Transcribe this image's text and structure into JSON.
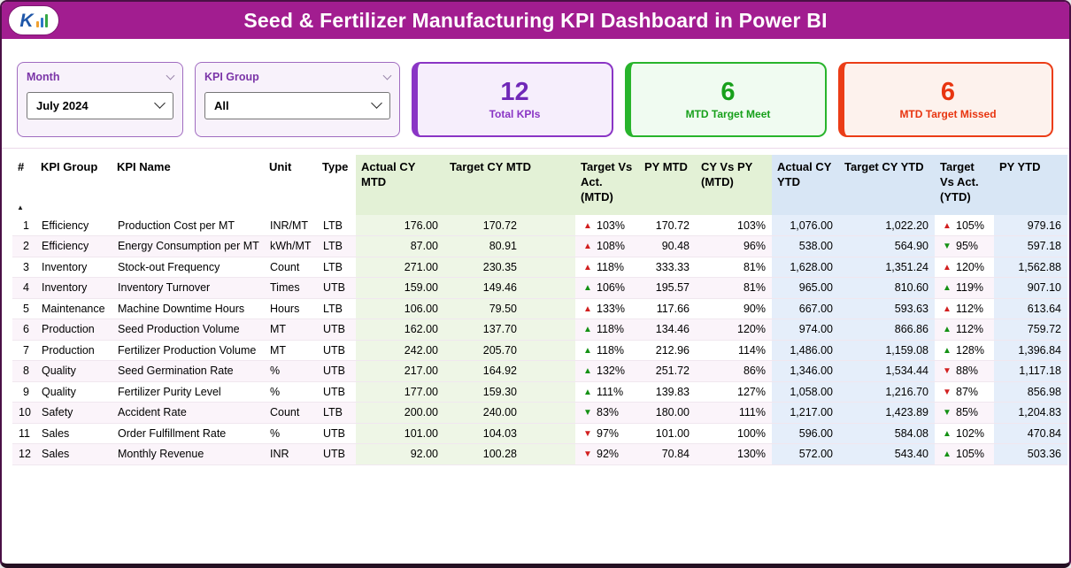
{
  "header": {
    "title": "Seed & Fertilizer Manufacturing KPI Dashboard in Power BI",
    "logo_letter": "K",
    "bar_color": "#a21d90"
  },
  "filters": {
    "month": {
      "label": "Month",
      "value": "July 2024"
    },
    "kpi_group": {
      "label": "KPI Group",
      "value": "All"
    }
  },
  "cards": [
    {
      "value": "12",
      "label": "Total KPIs",
      "color": "#8a35c5"
    },
    {
      "value": "6",
      "label": "MTD Target Meet",
      "color": "#28b42c"
    },
    {
      "value": "6",
      "label": "MTD Target Missed",
      "color": "#eb3d17"
    }
  ],
  "icons": {
    "chevron_down": "⌄",
    "sort_ascending": "▲",
    "up_arrow": "▲",
    "down_arrow": "▼"
  },
  "status_colors": {
    "bad": "#d21f1f",
    "good": "#149114"
  },
  "sort": {
    "column": "#",
    "direction": "ascending"
  },
  "table": {
    "columns": [
      {
        "key": "num",
        "label": "#",
        "header_tint": "plain",
        "shade": null,
        "align": "right",
        "arrow": false
      },
      {
        "key": "group",
        "label": "KPI Group",
        "header_tint": "plain",
        "shade": null,
        "align": "left",
        "arrow": false
      },
      {
        "key": "name",
        "label": "KPI Name",
        "header_tint": "plain",
        "shade": null,
        "align": "left",
        "arrow": false
      },
      {
        "key": "unit",
        "label": "Unit",
        "header_tint": "plain",
        "shade": null,
        "align": "left",
        "arrow": false
      },
      {
        "key": "type",
        "label": "Type",
        "header_tint": "plain",
        "shade": null,
        "align": "left",
        "arrow": false
      },
      {
        "key": "actual_mtd",
        "label": "Actual CY MTD",
        "header_tint": "green",
        "shade": "green",
        "align": "right",
        "arrow": false
      },
      {
        "key": "target_mtd",
        "label": "Target CY MTD",
        "header_tint": "green",
        "shade": "green",
        "align": "right",
        "arrow": false
      },
      {
        "key": "tva_mtd",
        "label": "Target Vs Act. (MTD)",
        "header_tint": "green",
        "shade": null,
        "align": "left",
        "arrow": true
      },
      {
        "key": "py_mtd",
        "label": "PY MTD",
        "header_tint": "green",
        "shade": null,
        "align": "right",
        "arrow": false
      },
      {
        "key": "cyvspy_mtd",
        "label": "CY Vs PY (MTD)",
        "header_tint": "green",
        "shade": null,
        "align": "right",
        "arrow": false
      },
      {
        "key": "actual_ytd",
        "label": "Actual CY YTD",
        "header_tint": "blue",
        "shade": "blue",
        "align": "right",
        "arrow": false
      },
      {
        "key": "target_ytd",
        "label": "Target CY YTD",
        "header_tint": "blue",
        "shade": "blue",
        "align": "right",
        "arrow": false
      },
      {
        "key": "tva_ytd",
        "label": "Target Vs Act. (YTD)",
        "header_tint": "blue",
        "shade": null,
        "align": "left",
        "arrow": true
      },
      {
        "key": "py_ytd",
        "label": "PY YTD",
        "header_tint": "blue",
        "shade": "blue",
        "align": "right",
        "arrow": false
      }
    ],
    "rows": [
      {
        "num": "1",
        "group": "Efficiency",
        "name": "Production Cost per MT",
        "unit": "INR/MT",
        "type": "LTB",
        "actual_mtd": "176.00",
        "target_mtd": "170.72",
        "tva_mtd": {
          "dir": "up",
          "color": "red",
          "pct": "103%"
        },
        "py_mtd": "170.72",
        "cyvspy_mtd": "103%",
        "actual_ytd": "1,076.00",
        "target_ytd": "1,022.20",
        "tva_ytd": {
          "dir": "up",
          "color": "red",
          "pct": "105%"
        },
        "py_ytd": "979.16"
      },
      {
        "num": "2",
        "group": "Efficiency",
        "name": "Energy Consumption per MT",
        "unit": "kWh/MT",
        "type": "LTB",
        "actual_mtd": "87.00",
        "target_mtd": "80.91",
        "tva_mtd": {
          "dir": "up",
          "color": "red",
          "pct": "108%"
        },
        "py_mtd": "90.48",
        "cyvspy_mtd": "96%",
        "actual_ytd": "538.00",
        "target_ytd": "564.90",
        "tva_ytd": {
          "dir": "down",
          "color": "green",
          "pct": "95%"
        },
        "py_ytd": "597.18"
      },
      {
        "num": "3",
        "group": "Inventory",
        "name": "Stock-out Frequency",
        "unit": "Count",
        "type": "LTB",
        "actual_mtd": "271.00",
        "target_mtd": "230.35",
        "tva_mtd": {
          "dir": "up",
          "color": "red",
          "pct": "118%"
        },
        "py_mtd": "333.33",
        "cyvspy_mtd": "81%",
        "actual_ytd": "1,628.00",
        "target_ytd": "1,351.24",
        "tva_ytd": {
          "dir": "up",
          "color": "red",
          "pct": "120%"
        },
        "py_ytd": "1,562.88"
      },
      {
        "num": "4",
        "group": "Inventory",
        "name": "Inventory Turnover",
        "unit": "Times",
        "type": "UTB",
        "actual_mtd": "159.00",
        "target_mtd": "149.46",
        "tva_mtd": {
          "dir": "up",
          "color": "green",
          "pct": "106%"
        },
        "py_mtd": "195.57",
        "cyvspy_mtd": "81%",
        "actual_ytd": "965.00",
        "target_ytd": "810.60",
        "tva_ytd": {
          "dir": "up",
          "color": "green",
          "pct": "119%"
        },
        "py_ytd": "907.10"
      },
      {
        "num": "5",
        "group": "Maintenance",
        "name": "Machine Downtime Hours",
        "unit": "Hours",
        "type": "LTB",
        "actual_mtd": "106.00",
        "target_mtd": "79.50",
        "tva_mtd": {
          "dir": "up",
          "color": "red",
          "pct": "133%"
        },
        "py_mtd": "117.66",
        "cyvspy_mtd": "90%",
        "actual_ytd": "667.00",
        "target_ytd": "593.63",
        "tva_ytd": {
          "dir": "up",
          "color": "red",
          "pct": "112%"
        },
        "py_ytd": "613.64"
      },
      {
        "num": "6",
        "group": "Production",
        "name": "Seed Production Volume",
        "unit": "MT",
        "type": "UTB",
        "actual_mtd": "162.00",
        "target_mtd": "137.70",
        "tva_mtd": {
          "dir": "up",
          "color": "green",
          "pct": "118%"
        },
        "py_mtd": "134.46",
        "cyvspy_mtd": "120%",
        "actual_ytd": "974.00",
        "target_ytd": "866.86",
        "tva_ytd": {
          "dir": "up",
          "color": "green",
          "pct": "112%"
        },
        "py_ytd": "759.72"
      },
      {
        "num": "7",
        "group": "Production",
        "name": "Fertilizer Production Volume",
        "unit": "MT",
        "type": "UTB",
        "actual_mtd": "242.00",
        "target_mtd": "205.70",
        "tva_mtd": {
          "dir": "up",
          "color": "green",
          "pct": "118%"
        },
        "py_mtd": "212.96",
        "cyvspy_mtd": "114%",
        "actual_ytd": "1,486.00",
        "target_ytd": "1,159.08",
        "tva_ytd": {
          "dir": "up",
          "color": "green",
          "pct": "128%"
        },
        "py_ytd": "1,396.84"
      },
      {
        "num": "8",
        "group": "Quality",
        "name": "Seed Germination Rate",
        "unit": "%",
        "type": "UTB",
        "actual_mtd": "217.00",
        "target_mtd": "164.92",
        "tva_mtd": {
          "dir": "up",
          "color": "green",
          "pct": "132%"
        },
        "py_mtd": "251.72",
        "cyvspy_mtd": "86%",
        "actual_ytd": "1,346.00",
        "target_ytd": "1,534.44",
        "tva_ytd": {
          "dir": "down",
          "color": "red",
          "pct": "88%"
        },
        "py_ytd": "1,117.18"
      },
      {
        "num": "9",
        "group": "Quality",
        "name": "Fertilizer Purity Level",
        "unit": "%",
        "type": "UTB",
        "actual_mtd": "177.00",
        "target_mtd": "159.30",
        "tva_mtd": {
          "dir": "up",
          "color": "green",
          "pct": "111%"
        },
        "py_mtd": "139.83",
        "cyvspy_mtd": "127%",
        "actual_ytd": "1,058.00",
        "target_ytd": "1,216.70",
        "tva_ytd": {
          "dir": "down",
          "color": "red",
          "pct": "87%"
        },
        "py_ytd": "856.98"
      },
      {
        "num": "10",
        "group": "Safety",
        "name": "Accident Rate",
        "unit": "Count",
        "type": "LTB",
        "actual_mtd": "200.00",
        "target_mtd": "240.00",
        "tva_mtd": {
          "dir": "down",
          "color": "green",
          "pct": "83%"
        },
        "py_mtd": "180.00",
        "cyvspy_mtd": "111%",
        "actual_ytd": "1,217.00",
        "target_ytd": "1,423.89",
        "tva_ytd": {
          "dir": "down",
          "color": "green",
          "pct": "85%"
        },
        "py_ytd": "1,204.83"
      },
      {
        "num": "11",
        "group": "Sales",
        "name": "Order Fulfillment Rate",
        "unit": "%",
        "type": "UTB",
        "actual_mtd": "101.00",
        "target_mtd": "104.03",
        "tva_mtd": {
          "dir": "down",
          "color": "red",
          "pct": "97%"
        },
        "py_mtd": "101.00",
        "cyvspy_mtd": "100%",
        "actual_ytd": "596.00",
        "target_ytd": "584.08",
        "tva_ytd": {
          "dir": "up",
          "color": "green",
          "pct": "102%"
        },
        "py_ytd": "470.84"
      },
      {
        "num": "12",
        "group": "Sales",
        "name": "Monthly Revenue",
        "unit": "INR",
        "type": "UTB",
        "actual_mtd": "92.00",
        "target_mtd": "100.28",
        "tva_mtd": {
          "dir": "down",
          "color": "red",
          "pct": "92%"
        },
        "py_mtd": "70.84",
        "cyvspy_mtd": "130%",
        "actual_ytd": "572.00",
        "target_ytd": "543.40",
        "tva_ytd": {
          "dir": "up",
          "color": "green",
          "pct": "105%"
        },
        "py_ytd": "503.36"
      }
    ]
  }
}
